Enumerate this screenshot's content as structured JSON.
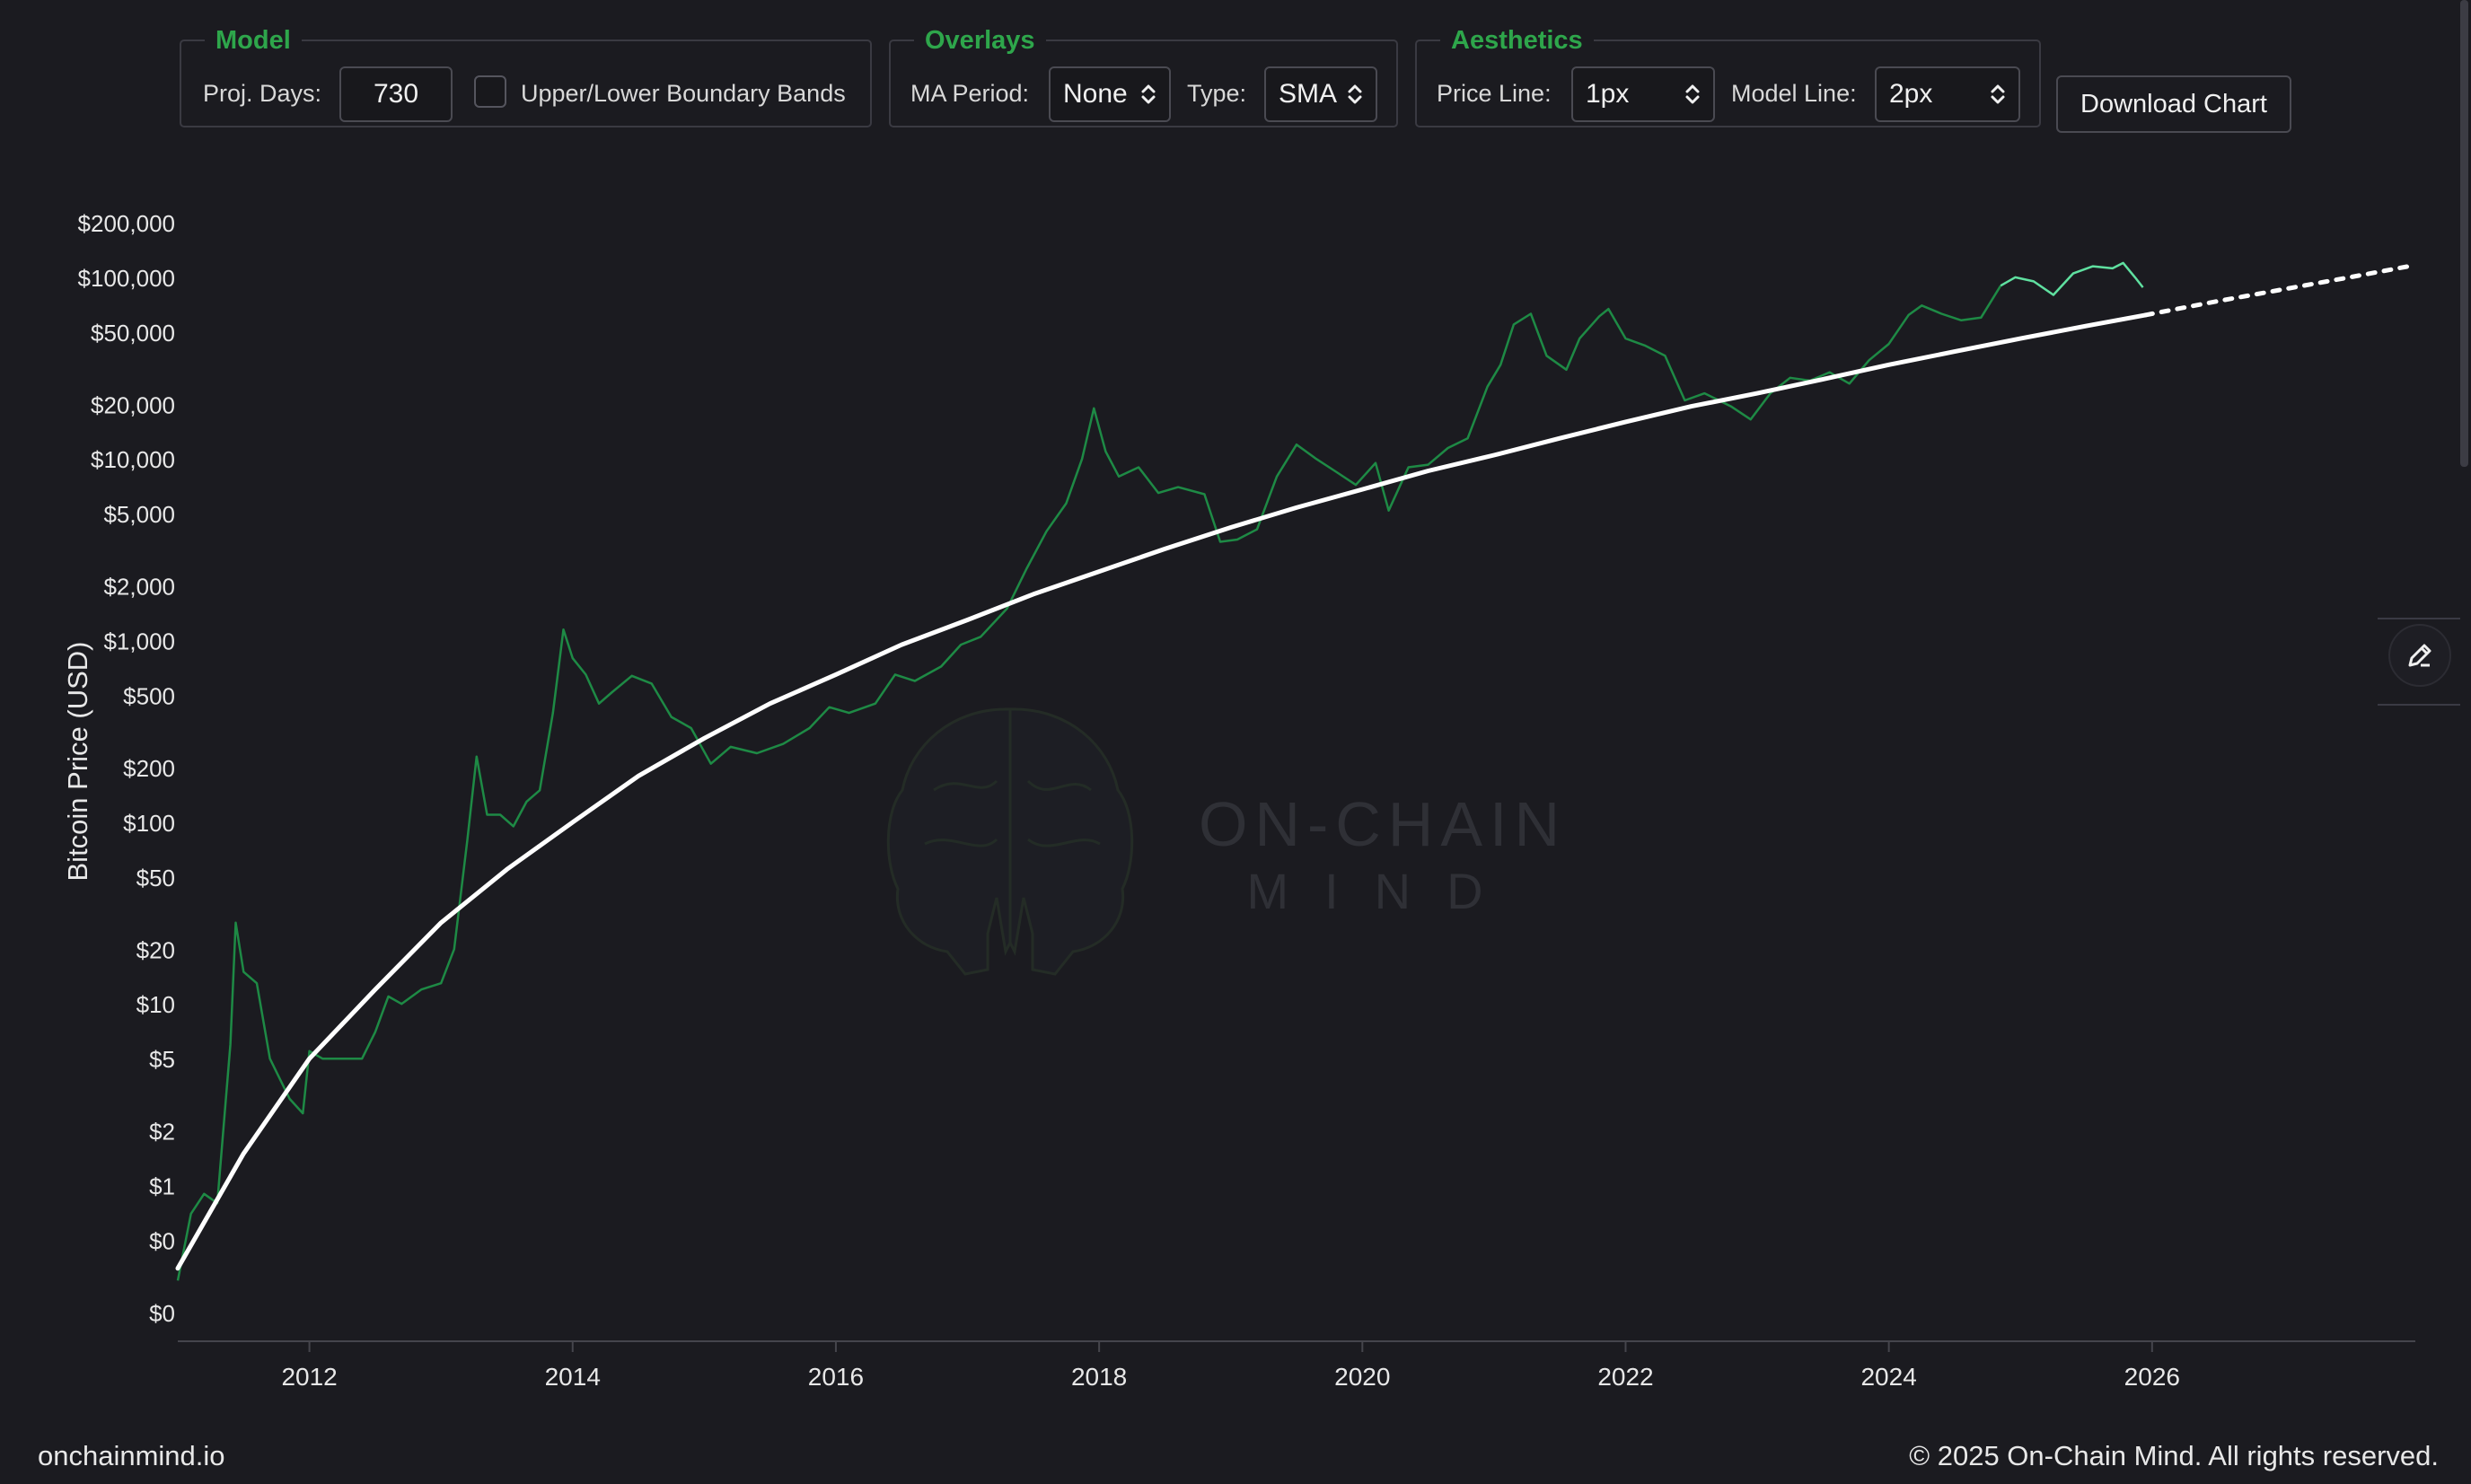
{
  "controls": {
    "model": {
      "legend": "Model",
      "proj_days_label": "Proj. Days:",
      "proj_days_value": "730",
      "bands_label": "Upper/Lower Boundary Bands",
      "bands_checked": false
    },
    "overlays": {
      "legend": "Overlays",
      "ma_period_label": "MA Period:",
      "ma_period_value": "None",
      "type_label": "Type:",
      "type_value": "SMA"
    },
    "aesthetics": {
      "legend": "Aesthetics",
      "price_line_label": "Price Line:",
      "price_line_value": "1px",
      "model_line_label": "Model Line:",
      "model_line_value": "2px"
    },
    "download_label": "Download Chart"
  },
  "watermark": {
    "line1": "ON-CHAIN",
    "line2": "MIND"
  },
  "footer": {
    "left": "onchainmind.io",
    "right": "© 2025 On-Chain Mind. All rights reserved."
  },
  "colors": {
    "background": "#1b1b20",
    "price_line": "#1e8a45",
    "price_line_recent": "#5fe0a0",
    "model_line": "#ffffff",
    "legend_accent": "#2ea64b"
  },
  "icons": {
    "edit": "edit-pencil-icon",
    "select": "chevron-up-down-icon"
  },
  "chart_data": {
    "type": "line",
    "ylabel": "Bitcoin Price (USD)",
    "xlabel": "",
    "y_scale": "log",
    "y_ticks": [
      {
        "value": 0.2,
        "label": "$0"
      },
      {
        "value": 0.5,
        "label": "$0"
      },
      {
        "value": 1,
        "label": "$1"
      },
      {
        "value": 2,
        "label": "$2"
      },
      {
        "value": 5,
        "label": "$5"
      },
      {
        "value": 10,
        "label": "$10"
      },
      {
        "value": 20,
        "label": "$20"
      },
      {
        "value": 50,
        "label": "$50"
      },
      {
        "value": 100,
        "label": "$100"
      },
      {
        "value": 200,
        "label": "$200"
      },
      {
        "value": 500,
        "label": "$500"
      },
      {
        "value": 1000,
        "label": "$1,000"
      },
      {
        "value": 2000,
        "label": "$2,000"
      },
      {
        "value": 5000,
        "label": "$5,000"
      },
      {
        "value": 10000,
        "label": "$10,000"
      },
      {
        "value": 20000,
        "label": "$20,000"
      },
      {
        "value": 50000,
        "label": "$50,000"
      },
      {
        "value": 100000,
        "label": "$100,000"
      },
      {
        "value": 200000,
        "label": "$200,000"
      }
    ],
    "x_ticks": [
      2012,
      2014,
      2016,
      2018,
      2020,
      2022,
      2024,
      2026
    ],
    "xlim": [
      2011.0,
      2028.0
    ],
    "ylim": [
      0.2,
      200000
    ],
    "grid": false,
    "series": [
      {
        "type": "price",
        "points": [
          [
            2011.0,
            0.3
          ],
          [
            2011.1,
            0.7
          ],
          [
            2011.2,
            0.9
          ],
          [
            2011.3,
            0.8
          ],
          [
            2011.4,
            6
          ],
          [
            2011.44,
            28
          ],
          [
            2011.5,
            15
          ],
          [
            2011.6,
            13
          ],
          [
            2011.7,
            5
          ],
          [
            2011.85,
            3
          ],
          [
            2011.95,
            2.5
          ],
          [
            2012.0,
            5.5
          ],
          [
            2012.1,
            5
          ],
          [
            2012.2,
            5
          ],
          [
            2012.4,
            5
          ],
          [
            2012.5,
            7
          ],
          [
            2012.6,
            11
          ],
          [
            2012.7,
            10
          ],
          [
            2012.85,
            12
          ],
          [
            2013.0,
            13
          ],
          [
            2013.1,
            20
          ],
          [
            2013.2,
            80
          ],
          [
            2013.27,
            230
          ],
          [
            2013.35,
            110
          ],
          [
            2013.45,
            110
          ],
          [
            2013.55,
            95
          ],
          [
            2013.65,
            130
          ],
          [
            2013.75,
            150
          ],
          [
            2013.85,
            400
          ],
          [
            2013.93,
            1150
          ],
          [
            2014.0,
            800
          ],
          [
            2014.1,
            650
          ],
          [
            2014.2,
            450
          ],
          [
            2014.3,
            520
          ],
          [
            2014.45,
            640
          ],
          [
            2014.6,
            580
          ],
          [
            2014.75,
            380
          ],
          [
            2014.9,
            330
          ],
          [
            2015.05,
            210
          ],
          [
            2015.2,
            260
          ],
          [
            2015.4,
            240
          ],
          [
            2015.6,
            270
          ],
          [
            2015.8,
            330
          ],
          [
            2015.95,
            430
          ],
          [
            2016.1,
            400
          ],
          [
            2016.3,
            450
          ],
          [
            2016.45,
            650
          ],
          [
            2016.6,
            600
          ],
          [
            2016.8,
            720
          ],
          [
            2016.95,
            950
          ],
          [
            2017.1,
            1050
          ],
          [
            2017.3,
            1500
          ],
          [
            2017.45,
            2500
          ],
          [
            2017.6,
            4000
          ],
          [
            2017.75,
            5700
          ],
          [
            2017.87,
            10000
          ],
          [
            2017.96,
            19000
          ],
          [
            2018.05,
            11000
          ],
          [
            2018.15,
            8000
          ],
          [
            2018.3,
            9000
          ],
          [
            2018.45,
            6500
          ],
          [
            2018.6,
            7000
          ],
          [
            2018.8,
            6400
          ],
          [
            2018.92,
            3500
          ],
          [
            2019.05,
            3600
          ],
          [
            2019.2,
            4100
          ],
          [
            2019.35,
            8000
          ],
          [
            2019.5,
            12000
          ],
          [
            2019.65,
            10000
          ],
          [
            2019.8,
            8500
          ],
          [
            2019.95,
            7200
          ],
          [
            2020.1,
            9500
          ],
          [
            2020.2,
            5200
          ],
          [
            2020.35,
            9000
          ],
          [
            2020.5,
            9300
          ],
          [
            2020.65,
            11500
          ],
          [
            2020.8,
            13000
          ],
          [
            2020.95,
            25000
          ],
          [
            2021.05,
            33000
          ],
          [
            2021.15,
            55000
          ],
          [
            2021.28,
            63000
          ],
          [
            2021.4,
            37000
          ],
          [
            2021.55,
            31000
          ],
          [
            2021.65,
            46000
          ],
          [
            2021.8,
            61000
          ],
          [
            2021.87,
            67000
          ],
          [
            2022.0,
            46000
          ],
          [
            2022.15,
            42000
          ],
          [
            2022.3,
            37000
          ],
          [
            2022.45,
            21000
          ],
          [
            2022.6,
            23000
          ],
          [
            2022.8,
            19500
          ],
          [
            2022.95,
            16500
          ],
          [
            2023.1,
            23000
          ],
          [
            2023.25,
            28000
          ],
          [
            2023.4,
            27000
          ],
          [
            2023.55,
            30000
          ],
          [
            2023.7,
            26000
          ],
          [
            2023.85,
            35000
          ],
          [
            2024.0,
            43000
          ],
          [
            2024.15,
            62000
          ],
          [
            2024.25,
            70000
          ],
          [
            2024.4,
            63000
          ],
          [
            2024.55,
            58000
          ],
          [
            2024.7,
            60000
          ],
          [
            2024.85,
            90000
          ],
          [
            2024.96,
            100000
          ],
          [
            2025.1,
            95000
          ],
          [
            2025.25,
            80000
          ],
          [
            2025.4,
            105000
          ],
          [
            2025.55,
            115000
          ],
          [
            2025.7,
            112000
          ],
          [
            2025.78,
            120000
          ],
          [
            2025.87,
            100000
          ],
          [
            2025.93,
            88000
          ]
        ]
      },
      {
        "type": "model",
        "points": [
          [
            2011.0,
            0.35
          ],
          [
            2011.5,
            1.5
          ],
          [
            2012.0,
            5
          ],
          [
            2012.5,
            12
          ],
          [
            2013.0,
            28
          ],
          [
            2013.5,
            55
          ],
          [
            2014.0,
            100
          ],
          [
            2014.5,
            180
          ],
          [
            2015.0,
            290
          ],
          [
            2015.5,
            450
          ],
          [
            2016.0,
            650
          ],
          [
            2016.5,
            950
          ],
          [
            2017.0,
            1300
          ],
          [
            2017.5,
            1800
          ],
          [
            2018.0,
            2400
          ],
          [
            2018.5,
            3200
          ],
          [
            2019.0,
            4200
          ],
          [
            2019.5,
            5400
          ],
          [
            2020.0,
            6800
          ],
          [
            2020.5,
            8600
          ],
          [
            2021.0,
            10500
          ],
          [
            2021.5,
            13000
          ],
          [
            2022.0,
            16000
          ],
          [
            2022.5,
            19500
          ],
          [
            2023.0,
            23000
          ],
          [
            2023.5,
            27500
          ],
          [
            2024.0,
            33000
          ],
          [
            2024.5,
            39000
          ],
          [
            2025.0,
            46000
          ],
          [
            2025.5,
            54000
          ],
          [
            2025.95,
            62000
          ]
        ]
      },
      {
        "type": "projection",
        "points": [
          [
            2025.95,
            62000
          ],
          [
            2026.5,
            74000
          ],
          [
            2027.0,
            86000
          ],
          [
            2027.5,
            100000
          ],
          [
            2027.95,
            115000
          ]
        ]
      }
    ]
  }
}
